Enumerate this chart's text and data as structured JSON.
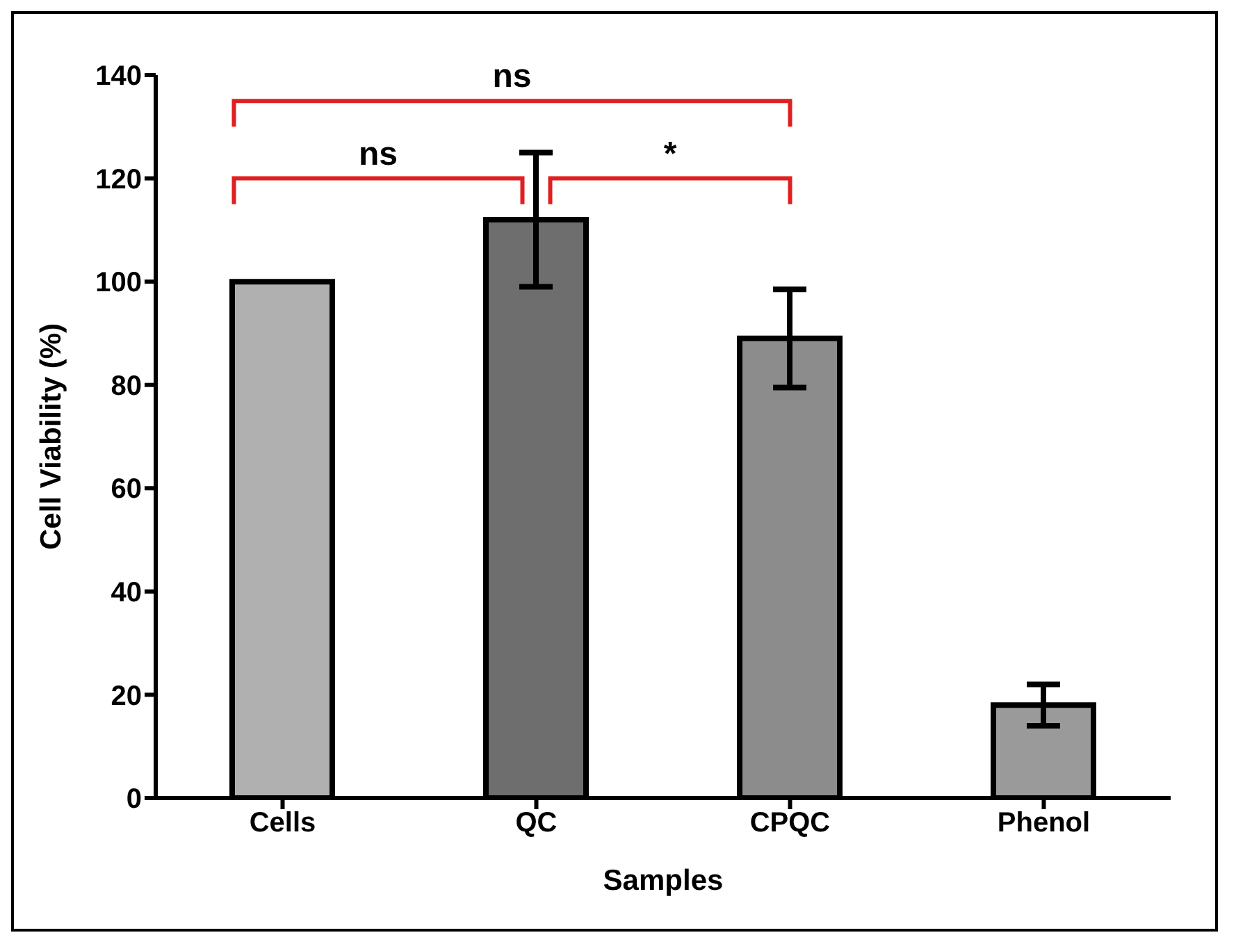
{
  "chart_data": {
    "type": "bar",
    "xlabel": "Samples",
    "ylabel": "Cell Viability (%)",
    "categories": [
      "Cells",
      "QC",
      "CPQC",
      "Phenol"
    ],
    "values": [
      100,
      112,
      89,
      18
    ],
    "errors": [
      null,
      13,
      9.5,
      4
    ],
    "colors": [
      "#b0b0b0",
      "#6e6e6e",
      "#8c8c8c",
      "#9a9a9a"
    ],
    "ylim": [
      0,
      140
    ],
    "yticks": [
      0,
      20,
      40,
      60,
      80,
      100,
      120,
      140
    ],
    "grid": false,
    "legend": false,
    "annotations": [
      "ns",
      "ns",
      "*"
    ]
  }
}
